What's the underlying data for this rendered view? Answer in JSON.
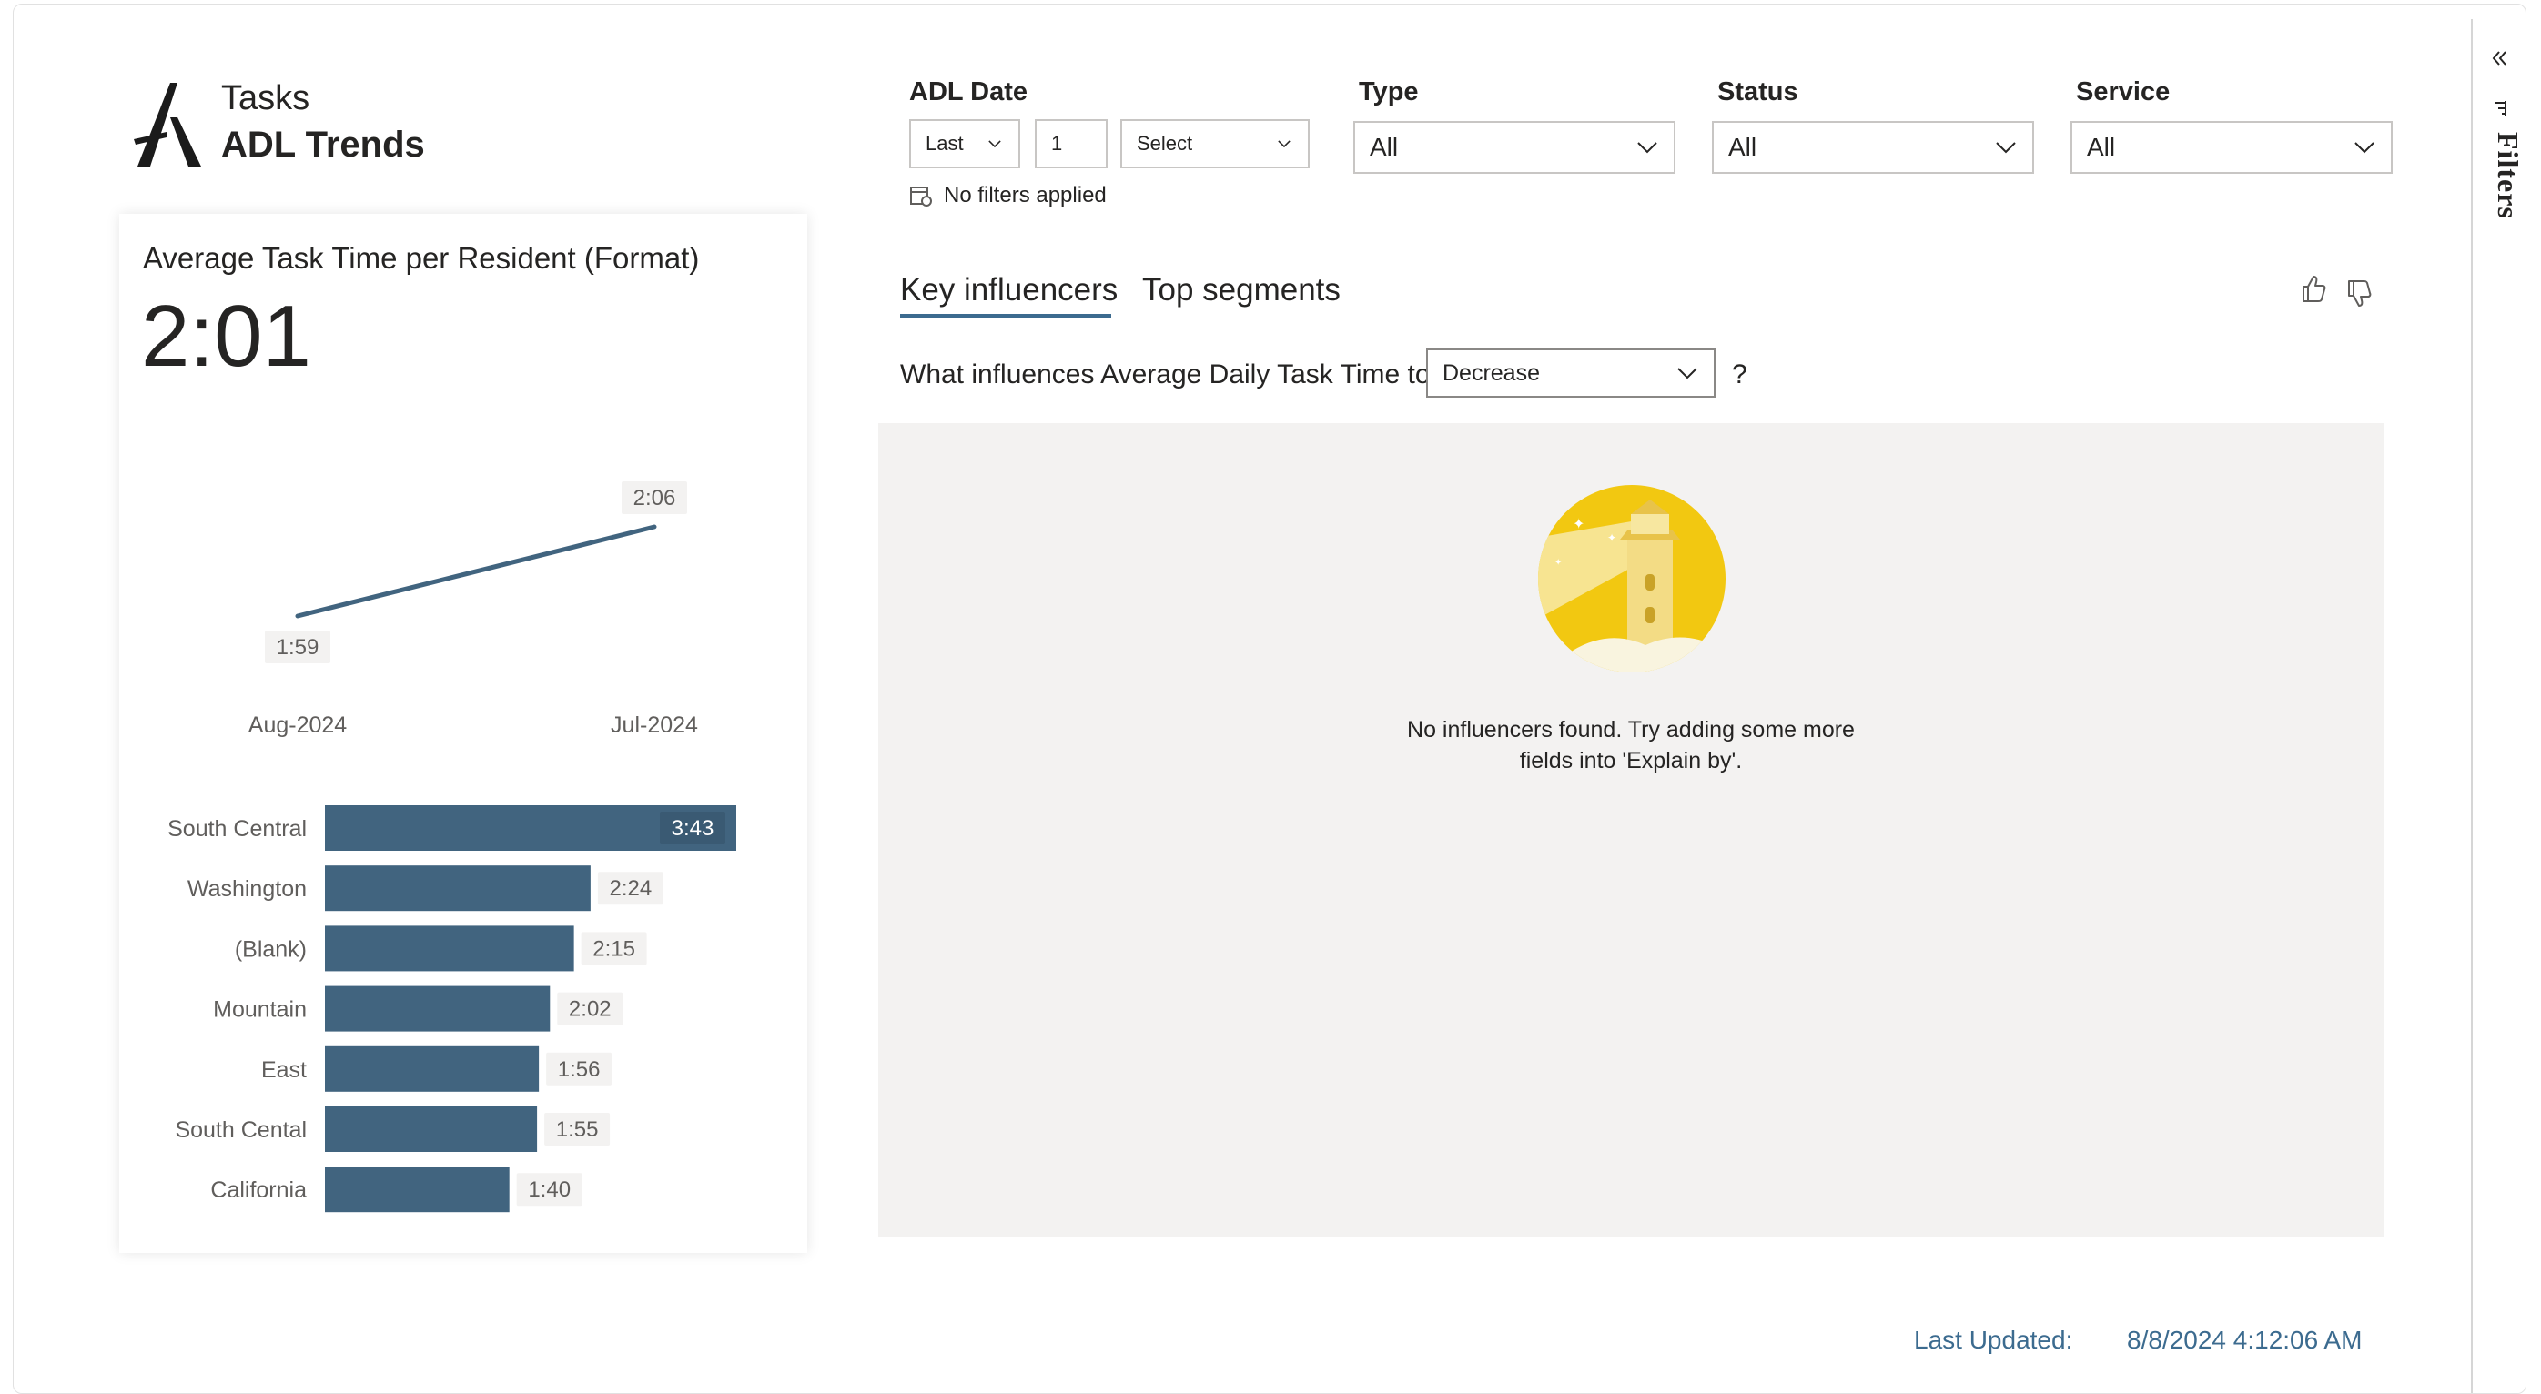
{
  "header": {
    "subtitle": "Tasks",
    "title": "ADL Trends",
    "logo_icon": "a-logo-icon"
  },
  "filters": {
    "adl_date": {
      "label": "ADL Date",
      "period": "Last",
      "count": "1",
      "unit": "Select",
      "status": "No filters applied"
    },
    "type": {
      "label": "Type",
      "value": "All"
    },
    "status": {
      "label": "Status",
      "value": "All"
    },
    "service": {
      "label": "Service",
      "value": "All"
    }
  },
  "card": {
    "title": "Average Task Time per Resident (Format)",
    "kpi": "2:01"
  },
  "chart_data": [
    {
      "type": "line",
      "categories": [
        "Aug-2024",
        "Jul-2024"
      ],
      "values": [
        119,
        126
      ],
      "data_labels": [
        "1:59",
        "2:06"
      ],
      "color": "#41647f"
    },
    {
      "type": "bar",
      "orientation": "horizontal",
      "categories": [
        "South Central",
        "Washington",
        "(Blank)",
        "Mountain",
        "East",
        "South Cental",
        "California"
      ],
      "values": [
        223,
        144,
        135,
        122,
        116,
        115,
        100
      ],
      "data_labels": [
        "3:43",
        "2:24",
        "2:15",
        "2:02",
        "1:56",
        "1:55",
        "1:40"
      ],
      "color": "#41647f"
    }
  ],
  "tabs": [
    {
      "label": "Key influencers",
      "active": true
    },
    {
      "label": "Top segments",
      "active": false
    }
  ],
  "feedback": {
    "like_icon": "thumbs-up-icon",
    "dislike_icon": "thumbs-down-icon"
  },
  "influencers": {
    "question": "What influences Average Daily Task Time to",
    "selected": "Decrease",
    "help": "?",
    "empty_icon": "lighthouse-icon",
    "empty_message_line1": "No influencers found. Try adding some more",
    "empty_message_line2": "fields into 'Explain by'."
  },
  "footer": {
    "last_updated_label": "Last Updated:",
    "last_updated_value": "8/8/2024 4:12:06 AM"
  },
  "filters_pane": {
    "label": "Filters",
    "collapse_icon": "double-chevron-left-icon",
    "filter_icon": "filter-icon"
  },
  "colors": {
    "accent": "#3c6b8f",
    "bar": "#41647f",
    "panel_bg": "#f3f2f1",
    "lighthouse_yellow": "#f2c811"
  }
}
